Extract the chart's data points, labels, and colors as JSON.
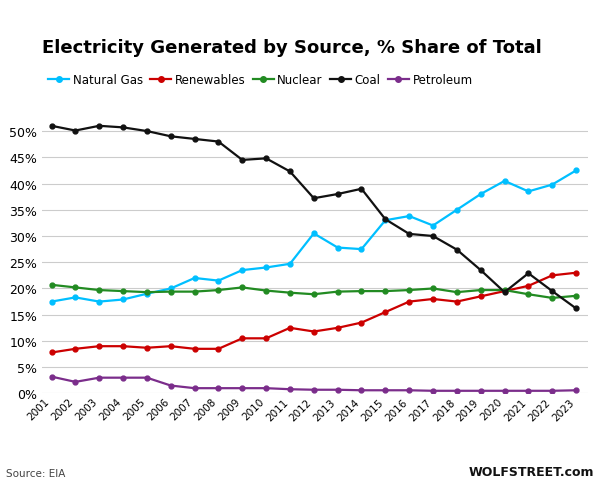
{
  "years": [
    2001,
    2002,
    2003,
    2004,
    2005,
    2006,
    2007,
    2008,
    2009,
    2010,
    2011,
    2012,
    2013,
    2014,
    2015,
    2016,
    2017,
    2018,
    2019,
    2020,
    2021,
    2022,
    2023
  ],
  "natural_gas": [
    17.5,
    18.3,
    17.5,
    17.9,
    19.0,
    20.0,
    22.0,
    21.5,
    23.5,
    24.0,
    24.7,
    30.5,
    27.8,
    27.5,
    33.0,
    33.8,
    32.0,
    35.0,
    38.0,
    40.5,
    38.5,
    39.8,
    42.5
  ],
  "renewables": [
    7.8,
    8.5,
    9.0,
    9.0,
    8.7,
    9.0,
    8.5,
    8.5,
    10.5,
    10.5,
    12.5,
    11.8,
    12.5,
    13.5,
    15.5,
    17.5,
    18.0,
    17.5,
    18.5,
    19.5,
    20.5,
    22.5,
    23.0
  ],
  "nuclear": [
    20.7,
    20.2,
    19.7,
    19.5,
    19.3,
    19.4,
    19.4,
    19.7,
    20.2,
    19.6,
    19.2,
    18.9,
    19.4,
    19.5,
    19.5,
    19.7,
    20.0,
    19.3,
    19.7,
    19.7,
    18.9,
    18.2,
    18.6
  ],
  "coal": [
    51.0,
    50.1,
    51.0,
    50.7,
    50.0,
    49.0,
    48.5,
    48.0,
    44.5,
    44.8,
    42.3,
    37.2,
    38.0,
    39.0,
    33.2,
    30.4,
    30.0,
    27.4,
    23.5,
    19.3,
    22.9,
    19.5,
    16.2
  ],
  "petroleum": [
    3.2,
    2.2,
    3.0,
    3.0,
    3.0,
    1.5,
    1.0,
    1.0,
    1.0,
    1.0,
    0.8,
    0.7,
    0.7,
    0.6,
    0.6,
    0.6,
    0.5,
    0.5,
    0.5,
    0.5,
    0.5,
    0.5,
    0.6
  ],
  "colors": {
    "natural_gas": "#00BFFF",
    "renewables": "#CC0000",
    "nuclear": "#228B22",
    "coal": "#111111",
    "petroleum": "#7B2D8B"
  },
  "title": "Electricity Generated by Source, % Share of Total",
  "title_fontsize": 13,
  "source_text": "Source: EIA",
  "watermark": "WOLFSTREET.com",
  "ylim": [
    0,
    55
  ],
  "yticks": [
    0,
    5,
    10,
    15,
    20,
    25,
    30,
    35,
    40,
    45,
    50
  ],
  "background_color": "#ffffff",
  "grid_color": "#cccccc"
}
